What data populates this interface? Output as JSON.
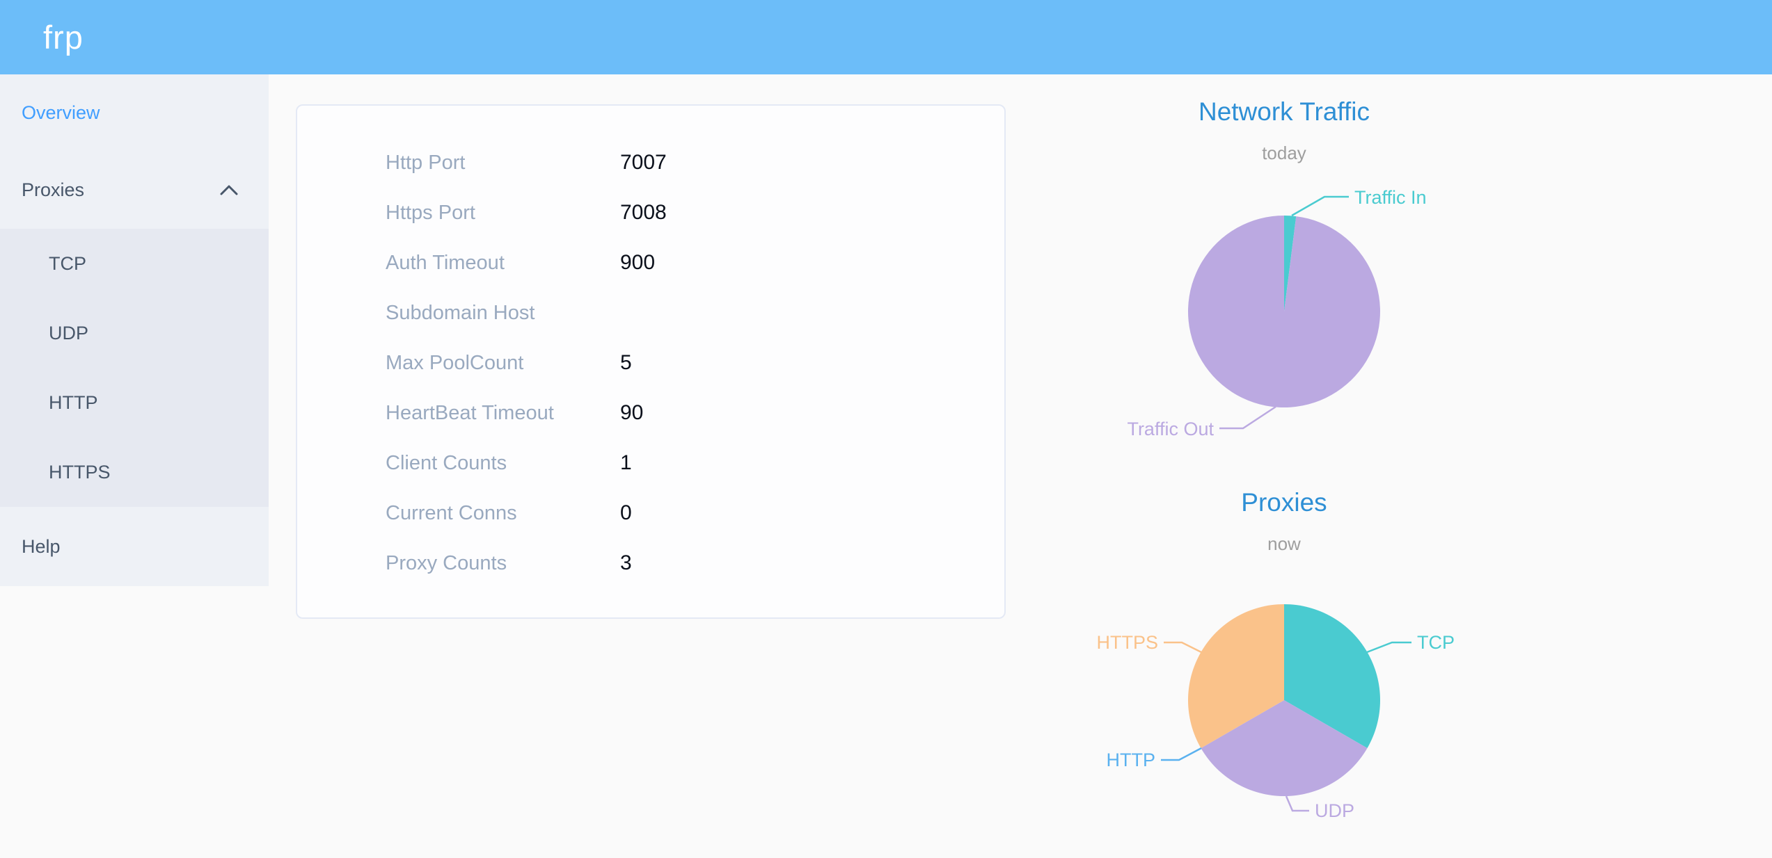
{
  "header": {
    "logo_text": "frp"
  },
  "sidebar": {
    "items": [
      {
        "label": "Overview",
        "active": true
      },
      {
        "label": "Proxies",
        "expanded": true,
        "children": [
          "TCP",
          "UDP",
          "HTTP",
          "HTTPS"
        ]
      },
      {
        "label": "Help"
      }
    ]
  },
  "overview": {
    "fields": [
      {
        "label": "Http Port",
        "value": "7007"
      },
      {
        "label": "Https Port",
        "value": "7008"
      },
      {
        "label": "Auth Timeout",
        "value": "900"
      },
      {
        "label": "Subdomain Host",
        "value": ""
      },
      {
        "label": "Max PoolCount",
        "value": "5"
      },
      {
        "label": "HeartBeat Timeout",
        "value": "90"
      },
      {
        "label": "Client Counts",
        "value": "1"
      },
      {
        "label": "Current Conns",
        "value": "0"
      },
      {
        "label": "Proxy Counts",
        "value": "3"
      }
    ]
  },
  "chart_data": [
    {
      "type": "pie",
      "title": "Network Traffic",
      "subtitle": "today",
      "labels": [
        "Traffic In",
        "Traffic Out"
      ],
      "values": [
        2,
        98
      ],
      "unit": "percent-of-pie (estimated from arc angles; no numeric labels shown)",
      "colors": [
        "#4acbd0",
        "#bba9e1"
      ],
      "legend_position": "callout-labels"
    },
    {
      "type": "pie",
      "title": "Proxies",
      "subtitle": "now",
      "labels": [
        "TCP",
        "UDP",
        "HTTP",
        "HTTPS"
      ],
      "values": [
        1,
        1,
        0,
        1
      ],
      "unit": "proxy count (total matches 'Proxy Counts' = 3; HTTP slice is zero-width)",
      "colors": [
        "#4acbd0",
        "#bba9e1",
        "#5ab1ef",
        "#fac28a"
      ],
      "legend_position": "callout-labels"
    }
  ],
  "colors": {
    "header_bg": "#6cbdf9",
    "sidebar_bg": "#eef1f6",
    "submenu_bg": "#e6e9f1",
    "page_bg": "#fafafa",
    "card_border": "#e4e9f5",
    "menu_text": "#48576a",
    "active_menu_text": "#409eff",
    "field_label": "#99a9bf",
    "field_value": "#0a0f1a",
    "chart_title": "#2e8fd5",
    "chart_subtitle": "#9e9e9e",
    "teal": "#4acbd0",
    "purple": "#bba9e1",
    "blue": "#5ab1ef",
    "orange": "#fac28a"
  }
}
